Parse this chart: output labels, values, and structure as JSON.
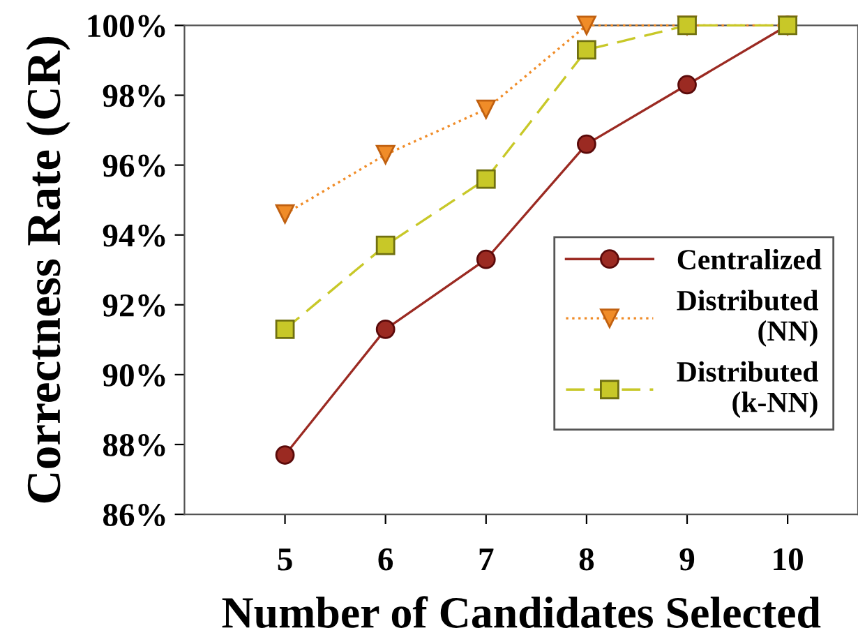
{
  "chart_data": {
    "type": "line",
    "xlabel": "Number of Candidates Selected",
    "ylabel": "Correctness Rate (CR)",
    "x": [
      5,
      6,
      7,
      8,
      9,
      10
    ],
    "xlim": [
      4,
      10.7
    ],
    "xticks": [
      5,
      6,
      7,
      8,
      9,
      10
    ],
    "ylim": [
      86,
      100
    ],
    "yticks": [
      {
        "value": 86,
        "label": "86%"
      },
      {
        "value": 88,
        "label": "88%"
      },
      {
        "value": 90,
        "label": "90%"
      },
      {
        "value": 92,
        "label": "92%"
      },
      {
        "value": 94,
        "label": "94%"
      },
      {
        "value": 96,
        "label": "96%"
      },
      {
        "value": 98,
        "label": "98%"
      },
      {
        "value": 100,
        "label": "100%"
      }
    ],
    "grid": false,
    "legend": "right",
    "series": [
      {
        "name": "Centralized",
        "color": "#9b2a22",
        "marker": "circle",
        "line_style": "solid",
        "values": [
          87.7,
          91.3,
          93.3,
          96.6,
          98.3,
          100
        ]
      },
      {
        "name": "Distributed\n(NN)",
        "color": "#f08c28",
        "marker": "triangle",
        "line_style": "dotted",
        "values": [
          94.6,
          96.3,
          97.6,
          100,
          100,
          100
        ]
      },
      {
        "name": "Distributed\n(k-NN)",
        "color": "#c8c828",
        "marker": "square",
        "line_style": "dashed",
        "values": [
          91.3,
          93.7,
          95.6,
          99.3,
          100,
          100
        ]
      }
    ]
  }
}
